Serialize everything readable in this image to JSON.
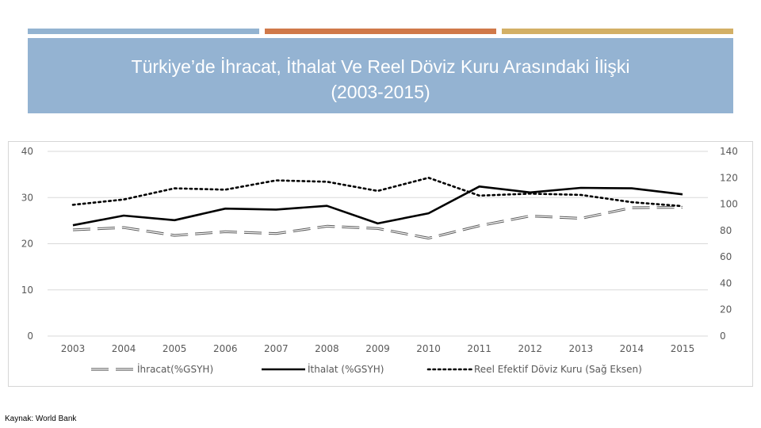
{
  "title": {
    "line1": "Türkiye’de İhracat, İthalat Ve Reel Döviz Kuru Arasındaki İlişki",
    "line2": "(2003-2015)"
  },
  "source": "Kaynak: World Bank",
  "chart_data": {
    "type": "line",
    "categories": [
      "2003",
      "2004",
      "2005",
      "2006",
      "2007",
      "2008",
      "2009",
      "2010",
      "2011",
      "2012",
      "2013",
      "2014",
      "2015"
    ],
    "y_left": {
      "ticks": [
        "0",
        "10",
        "20",
        "30",
        "40"
      ],
      "ylim": [
        0,
        40
      ]
    },
    "y_right": {
      "ticks": [
        "0",
        "20",
        "40",
        "60",
        "80",
        "100",
        "120",
        "140"
      ],
      "ylim": [
        0,
        140
      ]
    },
    "grid": true,
    "legend_position": "bottom",
    "series": [
      {
        "name": "İhracat(%GSYH)",
        "axis": "left",
        "style": "dashed",
        "values": [
          23.0,
          23.5,
          21.8,
          22.6,
          22.2,
          23.8,
          23.3,
          21.2,
          23.9,
          26.0,
          25.5,
          27.8,
          27.9
        ]
      },
      {
        "name": "İthalat (%GSYH)",
        "axis": "left",
        "style": "solid",
        "values": [
          24.0,
          26.1,
          25.1,
          27.6,
          27.4,
          28.2,
          24.4,
          26.6,
          32.4,
          31.1,
          32.1,
          32.0,
          30.7
        ]
      },
      {
        "name": "Reel Efektif Döviz Kuru (Sağ Eksen)",
        "axis": "right",
        "style": "dotted",
        "values": [
          99.5,
          103.5,
          112.0,
          111.0,
          118.0,
          117.0,
          110.0,
          120.0,
          106.5,
          108.0,
          107.0,
          101.5,
          98.5
        ]
      }
    ]
  }
}
